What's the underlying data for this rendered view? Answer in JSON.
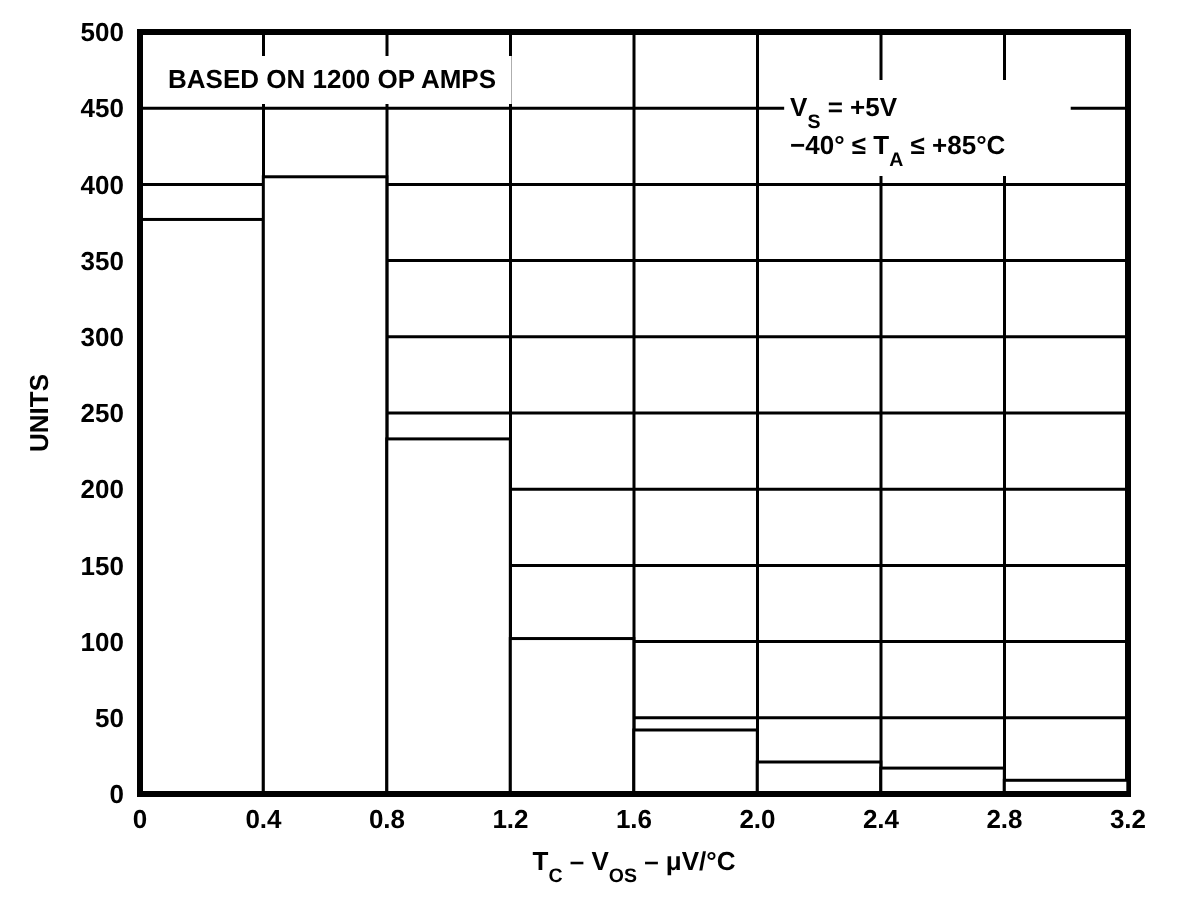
{
  "chart_data": {
    "type": "histogram",
    "xlabel": "T$_{C}$ – V$_{OS}$ – μV/°C",
    "ylabel": "UNITS",
    "bins": [
      0,
      0.4,
      0.8,
      1.2,
      1.6,
      2.0,
      2.4,
      2.8,
      3.2
    ],
    "values": [
      377,
      405,
      233,
      102,
      42,
      21,
      17,
      9
    ],
    "color": "#ffffff",
    "xlim": [
      0,
      3.2
    ],
    "xticks": [
      {
        "value": 0,
        "label": "0"
      },
      {
        "value": 0.4,
        "label": "0.4"
      },
      {
        "value": 0.8,
        "label": "0.8"
      },
      {
        "value": 1.2,
        "label": "1.2"
      },
      {
        "value": 1.6,
        "label": "1.6"
      },
      {
        "value": 2.0,
        "label": "2.0"
      },
      {
        "value": 2.4,
        "label": "2.4"
      },
      {
        "value": 2.8,
        "label": "2.8"
      },
      {
        "value": 3.2,
        "label": "3.2"
      }
    ],
    "ylim": [
      0,
      500
    ],
    "yticks": [
      0,
      50,
      100,
      150,
      200,
      250,
      300,
      350,
      400,
      450,
      500
    ],
    "grid": true,
    "annotations": [
      "BASED ON 1200 OP AMPS",
      "V$_{S}$ = +5V",
      "−40° ≤ T$_{A}$ ≤ +85°C"
    ]
  }
}
